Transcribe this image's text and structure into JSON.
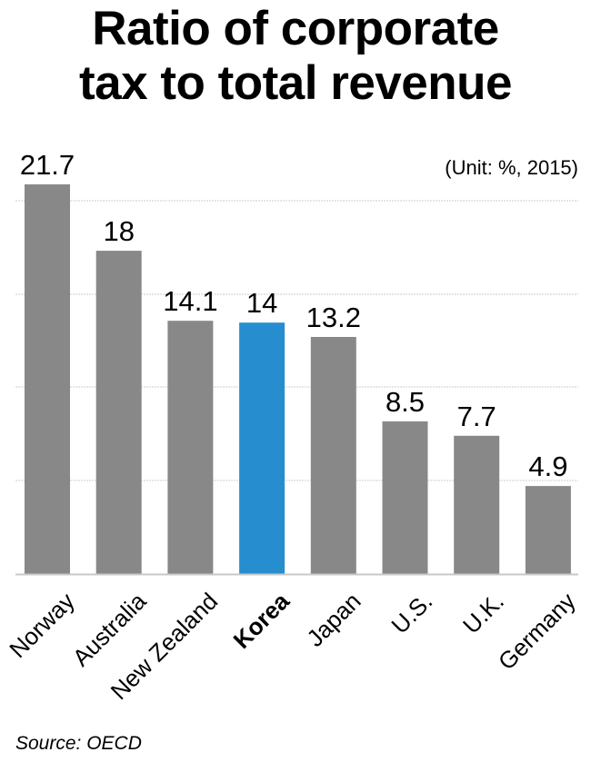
{
  "chart_data": {
    "type": "bar",
    "title": "Ratio of corporate tax to total revenue",
    "title_lines": [
      "Ratio of corporate",
      "tax to total revenue"
    ],
    "subtitle": "(Unit: %, 2015)",
    "xlabel": "",
    "ylabel": "",
    "categories": [
      "Norway",
      "Australia",
      "New Zealand",
      "Korea",
      "Japan",
      "U.S.",
      "U.K.",
      "Germany"
    ],
    "values": [
      21.7,
      18,
      14.1,
      14,
      13.2,
      8.5,
      7.7,
      4.9
    ],
    "value_labels": [
      "21.7",
      "18",
      "14.1",
      "14",
      "13.2",
      "8.5",
      "7.7",
      "4.9"
    ],
    "highlight": "Korea",
    "colors": {
      "default": "#888888",
      "highlight": "#268ECF",
      "grid": "#cccccc",
      "axis": "#c8c8c8",
      "text": "#000000"
    },
    "ylim": [
      0,
      21.7
    ],
    "grid": true,
    "legend": "none",
    "source": "Source: OECD"
  }
}
